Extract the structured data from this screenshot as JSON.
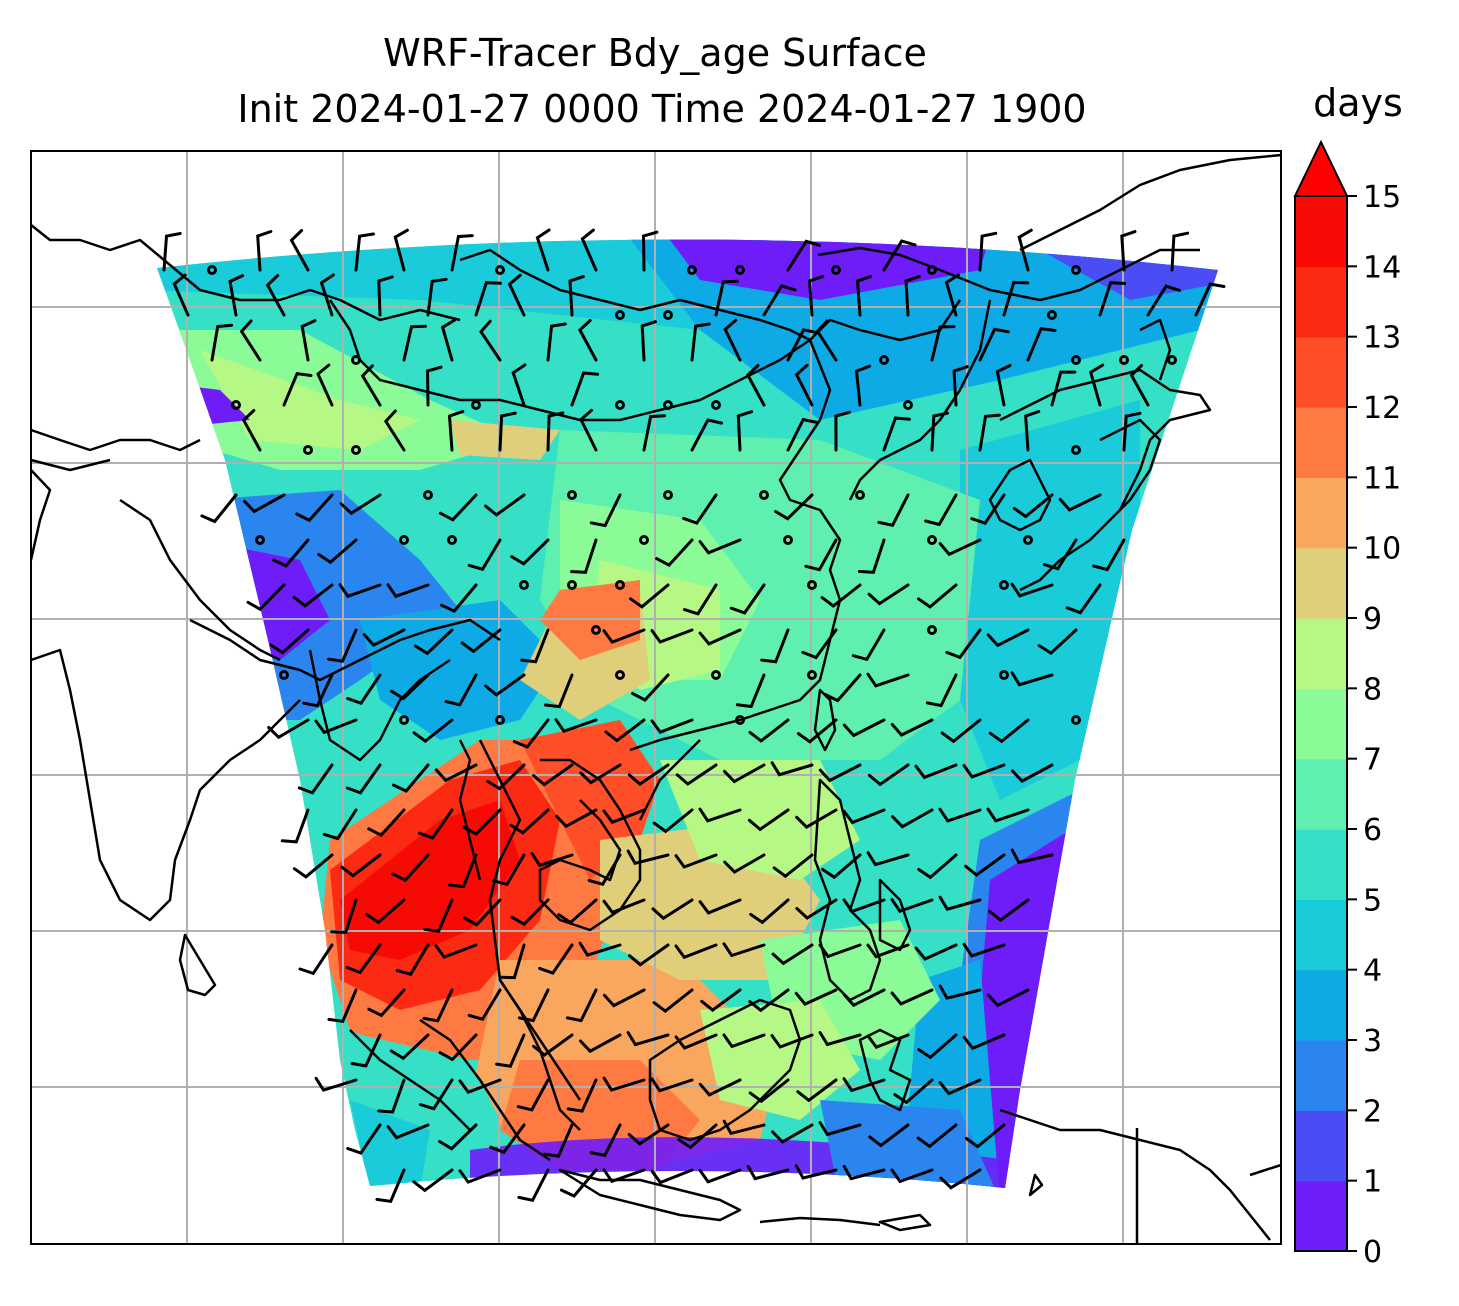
{
  "title": {
    "line1": "WRF-Tracer Bdy_age Surface",
    "line2": "Init 2024-01-27 0000 Time 2024-01-27 1900"
  },
  "colorbar": {
    "unit": "days",
    "extend": "max",
    "min": 0,
    "max": 15,
    "ticks": [
      "0",
      "1",
      "2",
      "3",
      "4",
      "5",
      "6",
      "7",
      "8",
      "9",
      "10",
      "11",
      "12",
      "13",
      "14",
      "15"
    ],
    "colors": [
      "#6e1cf8",
      "#4a4df4",
      "#2a85ef",
      "#0eaae6",
      "#1acbd9",
      "#35e0c7",
      "#5ff0b0",
      "#8afb96",
      "#b6f886",
      "#e0cf7a",
      "#f9a65f",
      "#ff7a42",
      "#ff4f28",
      "#fd2a13",
      "#f70a03"
    ],
    "extend_color": "#ff0000"
  },
  "map": {
    "field": "Bdy_age",
    "level": "Surface",
    "gridlines": true,
    "coastlines": true,
    "wind_barbs": true
  }
}
